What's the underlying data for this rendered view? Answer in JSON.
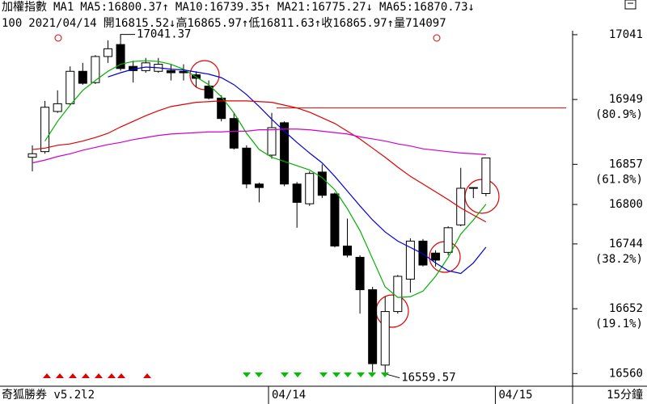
{
  "chart_data": {
    "type": "candlestick",
    "index_name": "加權指數",
    "indicator": "MA1",
    "period": "100",
    "date": "2021/04/14",
    "quote_labels": [
      "開",
      "高",
      "低",
      "收"
    ],
    "quote_arrows": [
      "↓",
      "↑",
      "↑",
      "↑"
    ],
    "volume_label": "量",
    "volume": 714097,
    "software": "奇狐勝券 v5.2l2",
    "interval": "15分鐘",
    "ylim": [
      16542,
      17065
    ],
    "yticks": [
      17041,
      16949,
      16857,
      16800,
      16744,
      16652,
      16560
    ],
    "ytick_notes": [
      null,
      "(80.9%)",
      "(61.8%)",
      null,
      "(38.2%)",
      "(19.1%)",
      null
    ],
    "xticks": [
      {
        "value": 19,
        "label": "04/14"
      },
      {
        "value": 37,
        "label": "04/15"
      }
    ],
    "hline": 16937,
    "hline_color": "#e00000",
    "up_color": "#ffffff",
    "down_color": "#000000",
    "candles": {
      "open": [
        16867,
        16875,
        16932,
        16943,
        16989,
        16973,
        17010,
        17027,
        16996,
        16990,
        16989,
        16990,
        16989,
        16984,
        16968,
        16951,
        16922,
        16880,
        16829,
        16870,
        16916,
        16829,
        16801,
        16846,
        16815,
        16741,
        16725,
        16679,
        16572,
        16648,
        16694,
        16748,
        16731,
        16732,
        16771,
        16824,
        16815.52
      ],
      "high": [
        16884,
        16947,
        16962,
        16996,
        17001,
        17012,
        17033,
        17041.37,
        17004,
        17008,
        17008,
        16999,
        16999,
        16989,
        16976,
        16955,
        16930,
        16884,
        16831,
        16930,
        16918,
        16832,
        16847,
        16857,
        16817,
        16780,
        16728,
        16683,
        16669,
        16700,
        16752,
        16751,
        16735,
        16769,
        16852,
        16824,
        16865.97
      ],
      "low": [
        16847,
        16872,
        16930,
        16941,
        16970,
        16971,
        17001,
        16990,
        16973,
        16987,
        16987,
        16976,
        16976,
        16966,
        16949,
        16918,
        16878,
        16823,
        16803,
        16865,
        16826,
        16767,
        16798,
        16809,
        16739,
        16725,
        16645,
        16562,
        16559.57,
        16645,
        16675,
        16712,
        16712,
        16728,
        16769,
        16809,
        16811.63
      ],
      "close": [
        16872,
        16938,
        16943,
        16989,
        16972,
        17010,
        17021,
        16993,
        16990,
        17001,
        16999,
        16987,
        16987,
        16979,
        16951,
        16922,
        16880,
        16829,
        16824,
        16909,
        16829,
        16803,
        16844,
        16813,
        16741,
        16728,
        16679,
        16574,
        16648,
        16698,
        16748,
        16714,
        16721,
        16767,
        16823,
        16823,
        16865.97
      ]
    },
    "series": [
      {
        "name": "MA5:",
        "color": "#00b000",
        "arrow": "↑",
        "values": [
          null,
          16890,
          16918,
          16941,
          16962,
          16976,
          16989,
          16999,
          17003,
          17004,
          17003,
          16999,
          16992,
          16981,
          16970,
          16953,
          16930,
          16901,
          16878,
          16867,
          16861,
          16855,
          16849,
          16838,
          16821,
          16794,
          16763,
          16723,
          16683,
          16668,
          16669,
          16677,
          16698,
          16725,
          16758,
          16778,
          16800.37
        ]
      },
      {
        "name": "MA10:",
        "color": "#0000e0",
        "arrow": "↑",
        "values": [
          null,
          null,
          null,
          null,
          null,
          null,
          16981,
          16987,
          16992,
          16995,
          16994,
          16992,
          16991,
          16988,
          16985,
          16980,
          16970,
          16956,
          16939,
          16921,
          16904,
          16888,
          16873,
          16859,
          16840,
          16819,
          16798,
          16778,
          16761,
          16748,
          16739,
          16730,
          16717,
          16706,
          16702,
          16717,
          16739.35
        ]
      },
      {
        "name": "MA21:",
        "color": "#e00000",
        "arrow": "↓",
        "values": [
          16878,
          16880,
          16884,
          16886,
          16890,
          16895,
          16901,
          16910,
          16918,
          16926,
          16933,
          16939,
          16942,
          16945,
          16946,
          16947,
          16947,
          16947,
          16946,
          16945,
          16941,
          16937,
          16931,
          16923,
          16915,
          16904,
          16893,
          16880,
          16867,
          16853,
          16840,
          16829,
          16818,
          16807,
          16795,
          16785,
          16775.27
        ]
      },
      {
        "name": "MA65:",
        "color": "#d000d0",
        "arrow": "↓",
        "values": [
          16859,
          16863,
          16868,
          16872,
          16877,
          16881,
          16885,
          16888,
          16892,
          16895,
          16898,
          16900,
          16901,
          16902,
          16903,
          16903,
          16904,
          16904,
          16906,
          16906,
          16907,
          16907,
          16906,
          16904,
          16902,
          16900,
          16896,
          16893,
          16890,
          16886,
          16883,
          16879,
          16877,
          16875,
          16873,
          16872,
          16870.73
        ]
      }
    ]
  }
}
